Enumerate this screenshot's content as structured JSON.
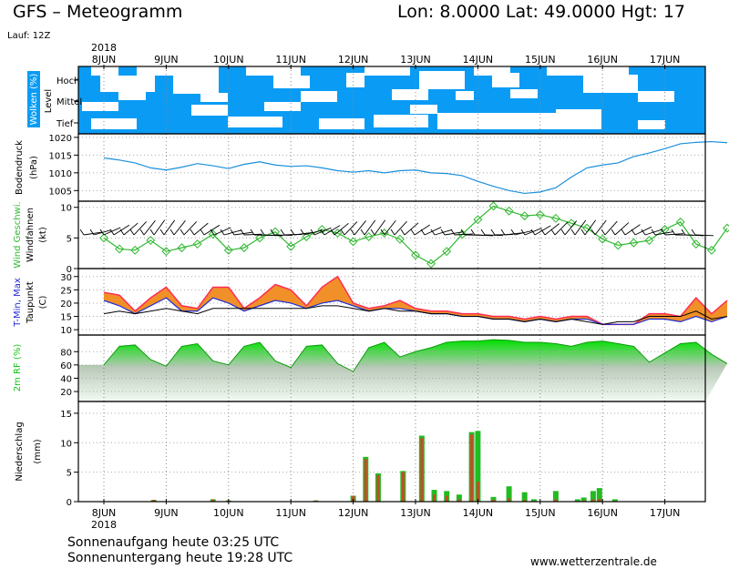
{
  "header": {
    "title": "GFS – Meteogramm",
    "location": "Lon: 8.0000  Lat: 49.0000  Hgt: 17",
    "run": "Lauf: 12Z"
  },
  "year_top": "2018",
  "year_bottom": "2018",
  "days": [
    "8JUN",
    "9JUN",
    "10JUN",
    "11JUN",
    "12JUN",
    "13JUN",
    "14JUN",
    "15JUN",
    "16JUN",
    "17JUN"
  ],
  "footer": {
    "sunrise": "Sonnenaufgang heute 03:25 UTC",
    "sunset": "Sonnenuntergang heute 19:28 UTC",
    "site": "www.wetterzentrale.de"
  },
  "colors": {
    "cloud": "#0a9cf5",
    "pressure": "#1a8fdc",
    "wind": "#2fb82f",
    "tmax": "#ff2d55",
    "tmid": "#f08a1c",
    "tmin": "#1d2cd6",
    "rh": "#11c811",
    "precip_conv": "#22bb22",
    "precip_large": "#c84a2a"
  },
  "chart_data": [
    {
      "type": "heatmap",
      "panel": "clouds",
      "ylabel": "Wolken (%)",
      "side_label": "Level",
      "levels": [
        "Hoch",
        "Mittel",
        "Tief"
      ],
      "note": "cloud cover by level, blue = cloud, white = clear"
    },
    {
      "type": "line",
      "panel": "pressure",
      "ylabel": "Bodendruck (hPa)",
      "ylim": [
        1002,
        1021
      ],
      "yticks": [
        1005,
        1010,
        1015,
        1020
      ],
      "x_days": [
        0,
        0.25,
        0.5,
        0.75,
        1,
        1.25,
        1.5,
        1.75,
        2,
        2.25,
        2.5,
        2.75,
        3,
        3.25,
        3.5,
        3.75,
        4,
        4.25,
        4.5,
        4.75,
        5,
        5.25,
        5.5,
        5.75,
        6,
        6.25,
        6.5,
        6.75,
        7,
        7.25,
        7.5,
        7.75,
        8,
        8.25,
        8.5,
        8.75,
        9,
        9.25,
        9.5,
        9.75,
        10
      ],
      "values": [
        1014.2,
        1013.6,
        1012.8,
        1011.4,
        1010.8,
        1011.6,
        1012.6,
        1012.0,
        1011.2,
        1012.4,
        1013.1,
        1012.2,
        1011.8,
        1012.0,
        1011.4,
        1010.6,
        1010.2,
        1010.6,
        1010.0,
        1010.6,
        1010.8,
        1010.0,
        1009.8,
        1009.2,
        1007.6,
        1006.2,
        1005.0,
        1004.2,
        1004.6,
        1005.8,
        1008.8,
        1011.4,
        1012.2,
        1012.8,
        1014.6,
        1015.6,
        1016.8,
        1018.2,
        1018.6,
        1018.8,
        1018.5
      ]
    },
    {
      "type": "line",
      "panel": "wind",
      "ylabel": "Wind Geschwi. (kt)",
      "ylabel2": "Windfahnen",
      "ylim": [
        0,
        11
      ],
      "yticks": [
        0,
        5,
        10
      ],
      "x_days": [
        0,
        0.25,
        0.5,
        0.75,
        1,
        1.25,
        1.5,
        1.75,
        2,
        2.25,
        2.5,
        2.75,
        3,
        3.25,
        3.5,
        3.75,
        4,
        4.25,
        4.5,
        4.75,
        5,
        5.25,
        5.5,
        5.75,
        6,
        6.25,
        6.5,
        6.75,
        7,
        7.25,
        7.5,
        7.75,
        8,
        8.25,
        8.5,
        8.75,
        9,
        9.25,
        9.5,
        9.75,
        10
      ],
      "values": [
        5.0,
        3.2,
        3.0,
        4.6,
        2.8,
        3.4,
        4.0,
        5.6,
        3.0,
        3.4,
        5.0,
        6.0,
        3.6,
        5.2,
        6.4,
        5.8,
        4.4,
        5.2,
        5.8,
        4.8,
        2.2,
        0.8,
        2.8,
        5.6,
        8.0,
        10.2,
        9.4,
        8.6,
        8.8,
        8.2,
        7.4,
        6.6,
        4.8,
        3.8,
        4.2,
        4.6,
        6.4,
        7.6,
        4.0,
        3.0,
        6.6
      ]
    },
    {
      "type": "area",
      "panel": "temperature",
      "ylabel": "T-Min, Max",
      "ylabel2": "Taupunkt",
      "yunit": "(C)",
      "ylim": [
        8,
        33
      ],
      "yticks": [
        10,
        15,
        20,
        25,
        30
      ],
      "x_days": [
        0,
        0.25,
        0.5,
        0.75,
        1,
        1.25,
        1.5,
        1.75,
        2,
        2.25,
        2.5,
        2.75,
        3,
        3.25,
        3.5,
        3.75,
        4,
        4.25,
        4.5,
        4.75,
        5,
        5.25,
        5.5,
        5.75,
        6,
        6.25,
        6.5,
        6.75,
        7,
        7.25,
        7.5,
        7.75,
        8,
        8.25,
        8.5,
        8.75,
        9,
        9.25,
        9.5,
        9.75,
        10
      ],
      "series": [
        {
          "name": "Max",
          "values": [
            24,
            23,
            17,
            22,
            26,
            19,
            18,
            26,
            26,
            18,
            22,
            27,
            25,
            19,
            26,
            30,
            20,
            18,
            19,
            21,
            18,
            17,
            17,
            16,
            16,
            15,
            15,
            14,
            15,
            14,
            15,
            15,
            12,
            12,
            12,
            16,
            16,
            15,
            22,
            16,
            21
          ]
        },
        {
          "name": "Min",
          "values": [
            21,
            19,
            16,
            19,
            22,
            17,
            17,
            22,
            20,
            17,
            19,
            21,
            20,
            18,
            20,
            21,
            19,
            17,
            18,
            18,
            17,
            16,
            16,
            15,
            15,
            14,
            14,
            13,
            14,
            13,
            14,
            14,
            12,
            12,
            12,
            14,
            14,
            13,
            15,
            13,
            15
          ]
        },
        {
          "name": "Taupunkt",
          "values": [
            16,
            17,
            16,
            17,
            18,
            17,
            16,
            18,
            18,
            18,
            18,
            18,
            18,
            18,
            19,
            19,
            18,
            17,
            18,
            17,
            17,
            16,
            16,
            15,
            15,
            14,
            14,
            13,
            14,
            13,
            14,
            13,
            12,
            13,
            13,
            15,
            15,
            15,
            17,
            14,
            15
          ]
        }
      ]
    },
    {
      "type": "area",
      "panel": "humidity",
      "ylabel": "2m RF (%)",
      "ylim": [
        5,
        105
      ],
      "yticks": [
        20,
        40,
        60,
        80
      ],
      "x_days": [
        0,
        0.25,
        0.5,
        0.75,
        1,
        1.25,
        1.5,
        1.75,
        2,
        2.25,
        2.5,
        2.75,
        3,
        3.25,
        3.5,
        3.75,
        4,
        4.25,
        4.5,
        4.75,
        5,
        5.25,
        5.5,
        5.75,
        6,
        6.25,
        6.5,
        6.75,
        7,
        7.25,
        7.5,
        7.75,
        8,
        8.25,
        8.5,
        8.75,
        9,
        9.25,
        9.5,
        9.75,
        10
      ],
      "values": [
        60,
        88,
        90,
        68,
        58,
        88,
        92,
        66,
        60,
        88,
        94,
        66,
        56,
        88,
        90,
        62,
        50,
        86,
        94,
        72,
        80,
        86,
        94,
        96,
        96,
        98,
        97,
        94,
        94,
        92,
        88,
        94,
        96,
        92,
        88,
        64,
        78,
        92,
        94,
        76,
        62
      ]
    },
    {
      "type": "bar",
      "panel": "precipitation",
      "ylabel": "Niederschlag (mm)",
      "ylim": [
        0,
        17
      ],
      "yticks": [
        0,
        5,
        10,
        15
      ],
      "x_days": [
        0.8,
        1.75,
        2.0,
        3.4,
        4.0,
        4.2,
        4.4,
        4.8,
        5.1,
        5.3,
        5.5,
        5.7,
        5.9,
        6.0,
        6.25,
        6.5,
        6.75,
        6.9,
        7.25,
        7.6,
        7.7,
        7.85,
        7.95,
        8.2
      ],
      "values": [
        0.3,
        0.4,
        0.2,
        0.2,
        1.0,
        7.6,
        4.8,
        5.2,
        11.2,
        2.0,
        1.8,
        1.2,
        11.8,
        12.0,
        0.8,
        2.6,
        1.6,
        0.4,
        1.8,
        0.4,
        0.7,
        1.8,
        2.3,
        0.4
      ],
      "series": [
        {
          "name": "large_scale",
          "values": [
            0.3,
            0.4,
            0.2,
            0.2,
            1.0,
            7.2,
            4.5,
            5.0,
            10.8,
            1.2,
            1.0,
            0.4,
            11.4,
            3.4,
            0.3,
            0.6,
            0.3,
            0.1,
            0.4,
            0.1,
            0.2,
            0.4,
            0.5,
            0.1
          ]
        }
      ]
    }
  ]
}
